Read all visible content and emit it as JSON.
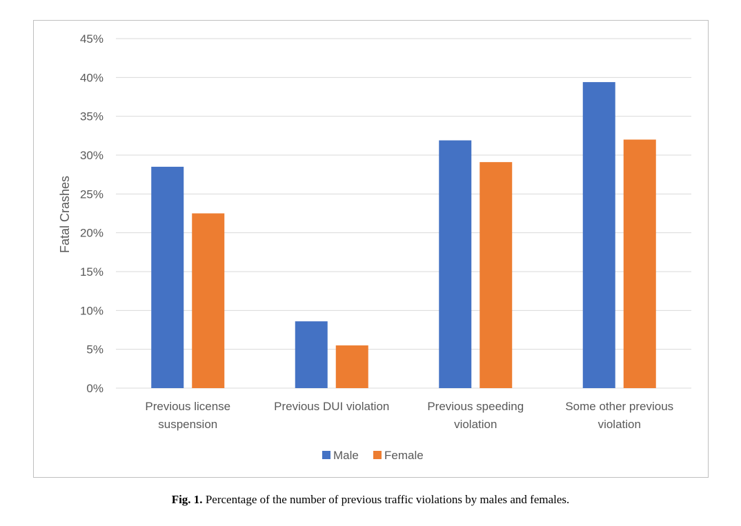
{
  "caption": {
    "label": "Fig. 1.",
    "text": "Percentage of the number of previous traffic violations by males and females."
  },
  "chart_data": {
    "type": "bar",
    "categories": [
      [
        "Previous license",
        "suspension"
      ],
      [
        "Previous DUI violation"
      ],
      [
        "Previous speeding",
        "violation"
      ],
      [
        "Some other previous",
        "violation"
      ]
    ],
    "series": [
      {
        "name": "Male",
        "color": "#4472C4",
        "values": [
          28.5,
          8.6,
          31.9,
          39.4
        ]
      },
      {
        "name": "Female",
        "color": "#ED7D31",
        "values": [
          22.5,
          5.5,
          29.1,
          32.0
        ]
      }
    ],
    "ylabel": "Fatal Crashes",
    "ylim": [
      0,
      45
    ],
    "yticks": [
      "0%",
      "5%",
      "10%",
      "15%",
      "20%",
      "25%",
      "30%",
      "35%",
      "40%",
      "45%"
    ],
    "grid": true,
    "legend": "bottom-center",
    "gridColor": "#d9d9d9"
  }
}
